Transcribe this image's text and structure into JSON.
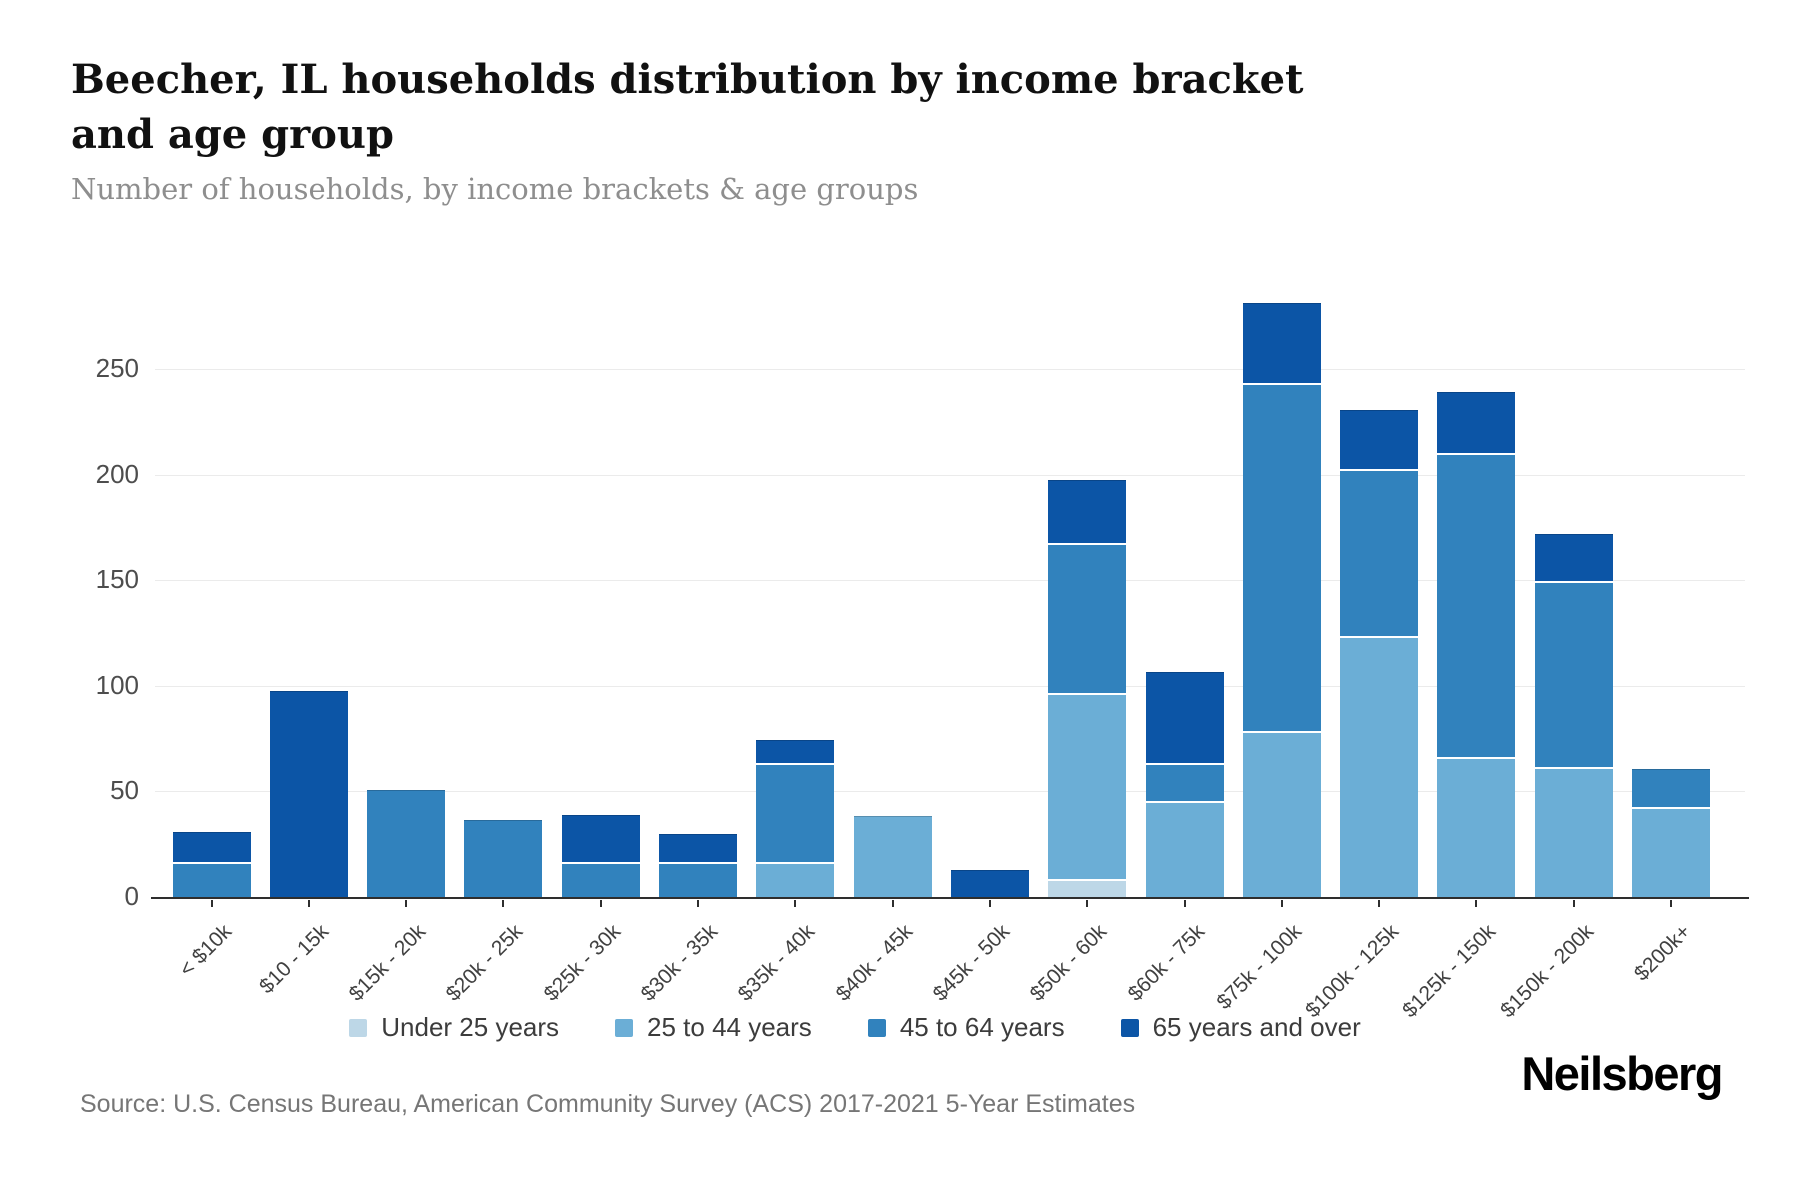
{
  "header": {
    "title": "Beecher, IL households distribution by income bracket and age group",
    "subtitle": "Number of households, by income brackets & age groups"
  },
  "chart_data": {
    "type": "bar",
    "stacked": true,
    "title": "Beecher, IL households distribution by income bracket and age group",
    "subtitle": "Number of households, by income brackets & age groups",
    "xlabel": "",
    "ylabel": "Number of households",
    "ylim": [
      0,
      307
    ],
    "yticks": [
      0,
      50,
      100,
      150,
      200,
      250
    ],
    "grid": true,
    "legend_position": "bottom-center",
    "categories": [
      "< $10k",
      "$10 - 15k",
      "$15k - 20k",
      "$20k - 25k",
      "$25k - 30k",
      "$30k - 35k",
      "$35k - 40k",
      "$40k - 45k",
      "$45k - 50k",
      "$50k - 60k",
      "$60k - 75k",
      "$75k - 100k",
      "$100k - 125k",
      "$125k - 150k",
      "$150k - 200k",
      "$200k+"
    ],
    "series": [
      {
        "name": "Under 25 years",
        "color": "#bdd7e7",
        "values": [
          0,
          0,
          0,
          0,
          0,
          0,
          0,
          0,
          0,
          9,
          0,
          0,
          0,
          0,
          0,
          0
        ]
      },
      {
        "name": "25 to 44 years",
        "color": "#6baed6",
        "values": [
          0,
          0,
          0,
          0,
          0,
          0,
          17,
          40,
          0,
          88,
          46,
          79,
          124,
          67,
          62,
          43
        ]
      },
      {
        "name": "45 to 64 years",
        "color": "#3182bd",
        "values": [
          17,
          0,
          52,
          38,
          17,
          17,
          47,
          0,
          0,
          71,
          18,
          165,
          79,
          144,
          88,
          19
        ]
      },
      {
        "name": "65 years and over",
        "color": "#0c55a6",
        "values": [
          15,
          99,
          0,
          0,
          23,
          14,
          12,
          0,
          14,
          31,
          44,
          39,
          29,
          30,
          23,
          0
        ]
      }
    ],
    "bar_totals": [
      32,
      99,
      52,
      38,
      40,
      31,
      76,
      40,
      14,
      199,
      108,
      283,
      232,
      241,
      173,
      62
    ]
  },
  "footer": {
    "source": "Source: U.S. Census Bureau, American Community Survey (ACS) 2017-2021 5-Year Estimates",
    "brand": "Neilsberg"
  }
}
